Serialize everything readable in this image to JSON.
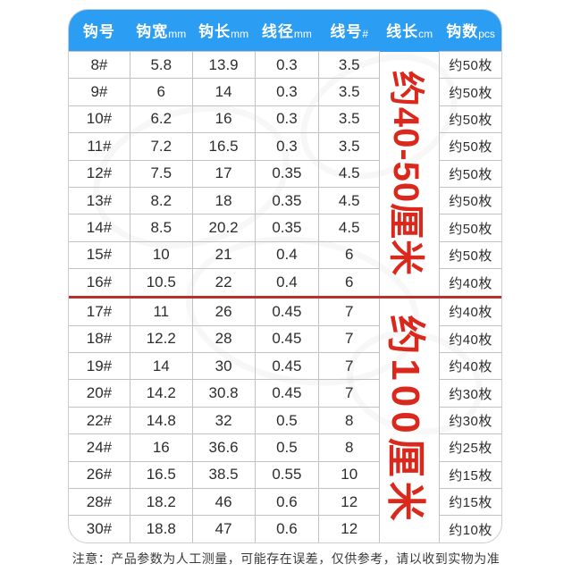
{
  "page": {
    "note": "注意：产品参数为人工测量，可能存在误差，仅供参考，请以收到实物为准"
  },
  "colors": {
    "header_bg": "#2b9df3",
    "header_text": "#ffffff",
    "accent_red": "#da291c",
    "divider_red": "#b8322c",
    "grid_line": "#bfc3c7",
    "cell_text": "#2d2d2d",
    "note_text": "#3a3a3a",
    "card_bg": "#ffffff"
  },
  "chart_data": {
    "type": "table",
    "title": "",
    "columns": [
      {
        "cn": "钩号",
        "suffix": ""
      },
      {
        "cn": "钩宽",
        "suffix": "mm"
      },
      {
        "cn": "钩长",
        "suffix": "mm"
      },
      {
        "cn": "线径",
        "suffix": "mm"
      },
      {
        "cn": "线号",
        "suffix": "#"
      },
      {
        "cn": "线长",
        "suffix": "cm"
      },
      {
        "cn": "钩数",
        "suffix": "pcs"
      }
    ],
    "group_split": 9,
    "line_length_groups": [
      {
        "label": "约40-50厘米",
        "row_span": 9
      },
      {
        "label": "约100厘米",
        "row_span": 9
      }
    ],
    "rows": [
      {
        "hook": "8#",
        "hook_width": "5.8",
        "hook_length": "13.9",
        "line_dia": "0.3",
        "line_no": "3.5",
        "qty": "约50枚"
      },
      {
        "hook": "9#",
        "hook_width": "6",
        "hook_length": "14",
        "line_dia": "0.3",
        "line_no": "3.5",
        "qty": "约50枚"
      },
      {
        "hook": "10#",
        "hook_width": "6.2",
        "hook_length": "16",
        "line_dia": "0.3",
        "line_no": "3.5",
        "qty": "约50枚"
      },
      {
        "hook": "11#",
        "hook_width": "7.2",
        "hook_length": "16.5",
        "line_dia": "0.3",
        "line_no": "3.5",
        "qty": "约50枚"
      },
      {
        "hook": "12#",
        "hook_width": "7.5",
        "hook_length": "17",
        "line_dia": "0.35",
        "line_no": "4.5",
        "qty": "约50枚"
      },
      {
        "hook": "13#",
        "hook_width": "8.2",
        "hook_length": "18",
        "line_dia": "0.35",
        "line_no": "4.5",
        "qty": "约50枚"
      },
      {
        "hook": "14#",
        "hook_width": "8.5",
        "hook_length": "20.2",
        "line_dia": "0.35",
        "line_no": "4.5",
        "qty": "约50枚"
      },
      {
        "hook": "15#",
        "hook_width": "10",
        "hook_length": "21",
        "line_dia": "0.4",
        "line_no": "6",
        "qty": "约50枚"
      },
      {
        "hook": "16#",
        "hook_width": "10.5",
        "hook_length": "22",
        "line_dia": "0.4",
        "line_no": "6",
        "qty": "约40枚"
      },
      {
        "hook": "17#",
        "hook_width": "11",
        "hook_length": "26",
        "line_dia": "0.45",
        "line_no": "7",
        "qty": "约40枚"
      },
      {
        "hook": "18#",
        "hook_width": "12.2",
        "hook_length": "28",
        "line_dia": "0.45",
        "line_no": "7",
        "qty": "约40枚"
      },
      {
        "hook": "19#",
        "hook_width": "14",
        "hook_length": "30",
        "line_dia": "0.45",
        "line_no": "7",
        "qty": "约40枚"
      },
      {
        "hook": "20#",
        "hook_width": "14.2",
        "hook_length": "30.8",
        "line_dia": "0.45",
        "line_no": "7",
        "qty": "约30枚"
      },
      {
        "hook": "22#",
        "hook_width": "14.8",
        "hook_length": "32",
        "line_dia": "0.5",
        "line_no": "8",
        "qty": "约30枚"
      },
      {
        "hook": "24#",
        "hook_width": "16",
        "hook_length": "36.6",
        "line_dia": "0.5",
        "line_no": "8",
        "qty": "约25枚"
      },
      {
        "hook": "26#",
        "hook_width": "16.5",
        "hook_length": "38.5",
        "line_dia": "0.55",
        "line_no": "10",
        "qty": "约15枚"
      },
      {
        "hook": "28#",
        "hook_width": "18.2",
        "hook_length": "46",
        "line_dia": "0.6",
        "line_no": "12",
        "qty": "约15枚"
      },
      {
        "hook": "30#",
        "hook_width": "18.8",
        "hook_length": "47",
        "line_dia": "0.6",
        "line_no": "12",
        "qty": "约10枚"
      }
    ]
  }
}
